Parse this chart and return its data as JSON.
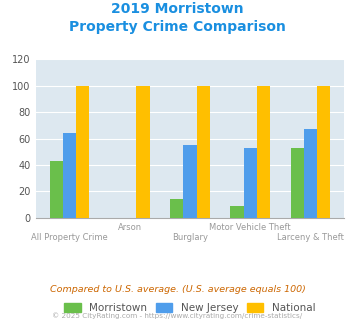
{
  "title_line1": "2019 Morristown",
  "title_line2": "Property Crime Comparison",
  "categories": [
    "All Property Crime",
    "Arson",
    "Burglary",
    "Motor Vehicle Theft",
    "Larceny & Theft"
  ],
  "morristown": [
    43,
    0,
    14,
    9,
    53
  ],
  "new_jersey": [
    64,
    0,
    55,
    53,
    67
  ],
  "national": [
    100,
    100,
    100,
    100,
    100
  ],
  "color_morristown": "#6abf4b",
  "color_nj": "#4f9deb",
  "color_national": "#ffbf00",
  "ylim": [
    0,
    120
  ],
  "yticks": [
    0,
    20,
    40,
    60,
    80,
    100,
    120
  ],
  "bg_color": "#dde8f0",
  "title_color": "#1a8fe0",
  "footer_text": "Compared to U.S. average. (U.S. average equals 100)",
  "footer2_text": "© 2025 CityRating.com - https://www.cityrating.com/crime-statistics/",
  "footer_color": "#cc6600",
  "footer2_color": "#aaaaaa",
  "legend_labels": [
    "Morristown",
    "New Jersey",
    "National"
  ],
  "bar_width": 0.22
}
